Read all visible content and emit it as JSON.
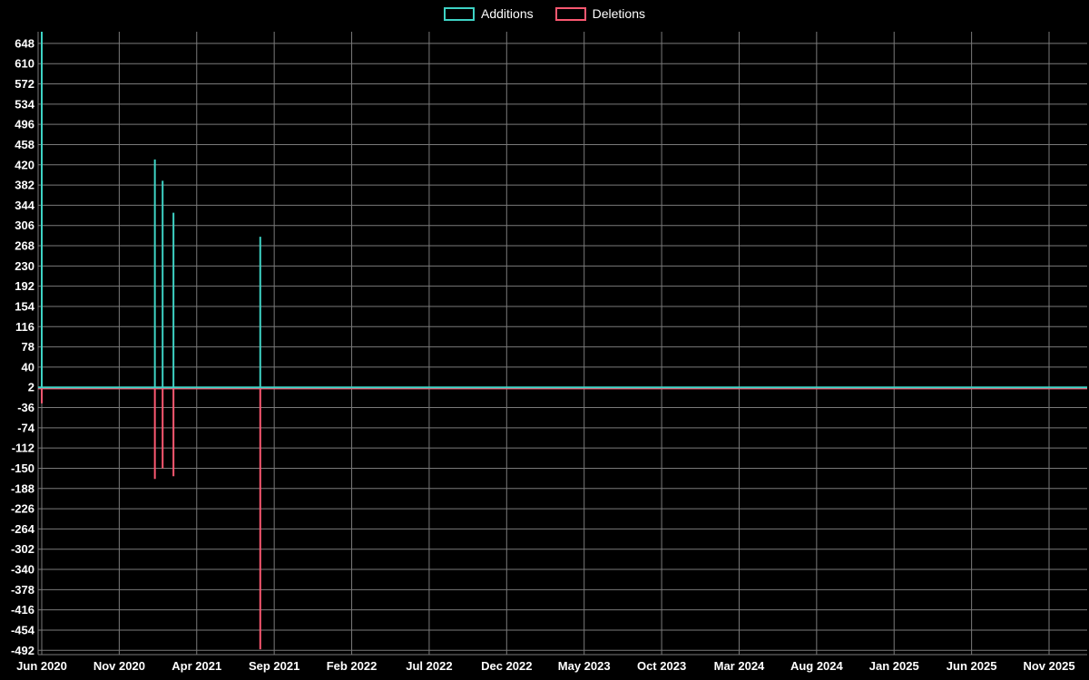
{
  "legend": {
    "items": [
      {
        "label": "Additions"
      },
      {
        "label": "Deletions"
      }
    ]
  },
  "chart_data": {
    "type": "line",
    "title": "",
    "background": "#000000",
    "grid": true,
    "grid_color": "#7a7a7a",
    "text_color": "#ffffff",
    "legend_position": "top-center",
    "x_axis": {
      "tick_labels": [
        "Jun 2020",
        "Nov 2020",
        "Apr 2021",
        "Sep 2021",
        "Feb 2022",
        "Jul 2022",
        "Dec 2022",
        "May 2023",
        "Oct 2023",
        "Mar 2024",
        "Aug 2024",
        "Jan 2025",
        "Jun 2025",
        "Nov 2025"
      ],
      "tick_interval_months": 5
    },
    "y_axis": {
      "tick_labels": [
        "648",
        "610",
        "572",
        "534",
        "496",
        "458",
        "420",
        "382",
        "344",
        "306",
        "268",
        "230",
        "192",
        "154",
        "116",
        "78",
        "40",
        "2",
        "-36",
        "-74",
        "-112",
        "-150",
        "-188",
        "-226",
        "-264",
        "-302",
        "-340",
        "-378",
        "-416",
        "-454",
        "-492"
      ],
      "tick_step": 38,
      "min": -500,
      "max": 670
    },
    "series": [
      {
        "name": "Additions",
        "color": "#3ed3c5",
        "baseline": 2,
        "points": [
          {
            "date": "Jun 2020",
            "month_offset": 0,
            "value": 670
          },
          {
            "date": "Jan 2021",
            "month_offset": 7.3,
            "value": 430
          },
          {
            "date": "Feb 2021",
            "month_offset": 7.8,
            "value": 390
          },
          {
            "date": "Feb 2021",
            "month_offset": 8.5,
            "value": 330
          },
          {
            "date": "Aug 2021",
            "month_offset": 14.1,
            "value": 285
          }
        ]
      },
      {
        "name": "Deletions",
        "color": "#fb5871",
        "baseline": 0,
        "points": [
          {
            "date": "Jun 2020",
            "month_offset": 0,
            "value": -28
          },
          {
            "date": "Jan 2021",
            "month_offset": 7.3,
            "value": -170
          },
          {
            "date": "Feb 2021",
            "month_offset": 7.8,
            "value": -150
          },
          {
            "date": "Feb 2021",
            "month_offset": 8.5,
            "value": -165
          },
          {
            "date": "Aug 2021",
            "month_offset": 14.1,
            "value": -490
          }
        ]
      }
    ]
  }
}
